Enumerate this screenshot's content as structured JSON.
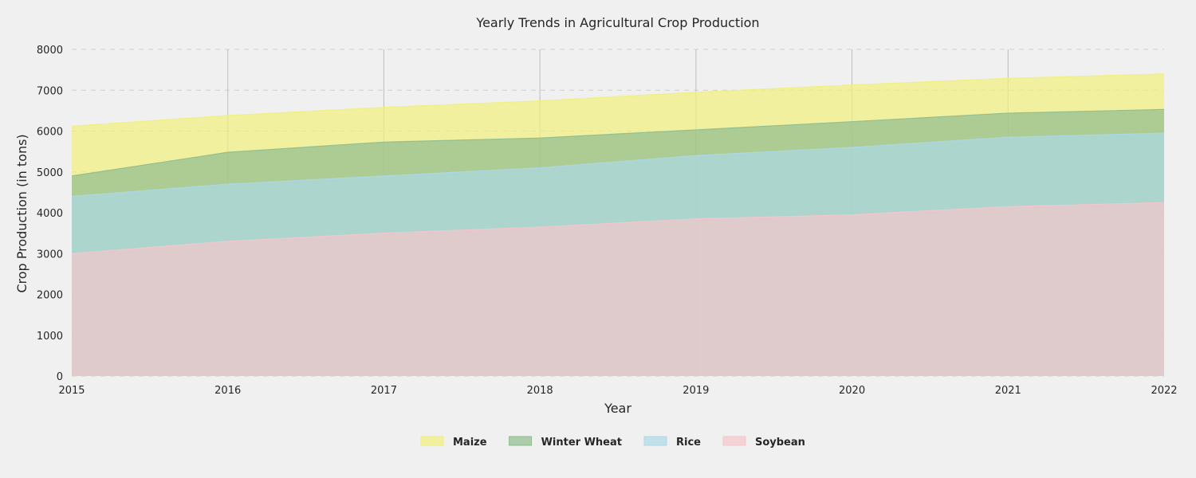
{
  "chart_data": {
    "type": "area",
    "title": "Yearly Trends in Agricultural Crop Production",
    "xlabel": "Year",
    "ylabel": "Crop Production (in tons)",
    "x": [
      2015,
      2016,
      2017,
      2018,
      2019,
      2020,
      2021,
      2022
    ],
    "xlim": [
      2015,
      2022
    ],
    "ylim": [
      0,
      8000
    ],
    "yticks": [
      0,
      1000,
      2000,
      3000,
      4000,
      5000,
      6000,
      7000,
      8000
    ],
    "grid": true,
    "legend_position": "bottom-center",
    "series": [
      {
        "name": "Soybean",
        "values": [
          3000,
          3300,
          3500,
          3650,
          3850,
          3950,
          4150,
          4250
        ],
        "color": "#f5c6cb"
      },
      {
        "name": "Rice",
        "values": [
          4400,
          4700,
          4900,
          5100,
          5400,
          5600,
          5850,
          5950
        ],
        "color": "#add8e6"
      },
      {
        "name": "Winter Wheat",
        "values": [
          4900,
          5480,
          5730,
          5830,
          6030,
          6230,
          6440,
          6530
        ],
        "color": "#8fbc8f"
      },
      {
        "name": "Maize",
        "values": [
          6120,
          6380,
          6580,
          6740,
          6950,
          7130,
          7290,
          7400
        ],
        "color": "#f0f07c"
      }
    ],
    "legend_order": [
      "Maize",
      "Winter Wheat",
      "Rice",
      "Soybean"
    ]
  }
}
